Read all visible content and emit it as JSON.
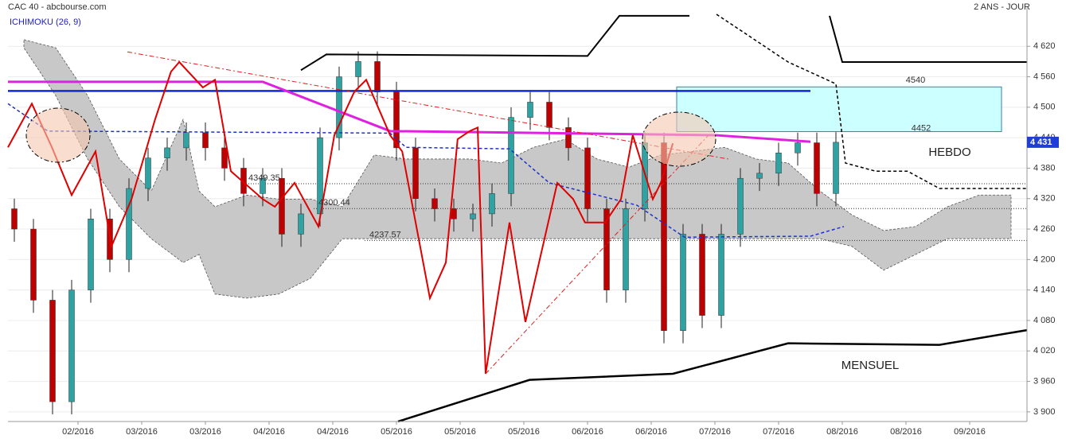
{
  "chart_data": {
    "type": "candlestick",
    "title": "CAC 40 - abcbourse.com",
    "period": "2 ANS - JOUR",
    "indicator": "ICHIMOKU (26, 9)",
    "xlim": [
      0,
      160
    ],
    "xticks": [
      {
        "value": 11,
        "label": "02/2016"
      },
      {
        "value": 21,
        "label": "03/2016"
      },
      {
        "value": 31,
        "label": "03/2016"
      },
      {
        "value": 41,
        "label": "04/2016"
      },
      {
        "value": 51,
        "label": "04/2016"
      },
      {
        "value": 61,
        "label": "05/2016"
      },
      {
        "value": 71,
        "label": "05/2016"
      },
      {
        "value": 81,
        "label": "05/2016"
      },
      {
        "value": 91,
        "label": "06/2016"
      },
      {
        "value": 101,
        "label": "06/2016"
      },
      {
        "value": 111,
        "label": "07/2016"
      },
      {
        "value": 121,
        "label": "07/2016"
      },
      {
        "value": 131,
        "label": "08/2016"
      },
      {
        "value": 141,
        "label": "08/2016"
      },
      {
        "value": 151,
        "label": "09/2016"
      }
    ],
    "ylim": [
      3881,
      4683
    ],
    "yticks": [
      {
        "value": 3900,
        "label": "3 900"
      },
      {
        "value": 3960,
        "label": "3 960"
      },
      {
        "value": 4020,
        "label": "4 020"
      },
      {
        "value": 4080,
        "label": "4 080"
      },
      {
        "value": 4140,
        "label": "4 140"
      },
      {
        "value": 4200,
        "label": "4 200"
      },
      {
        "value": 4260,
        "label": "4 260"
      },
      {
        "value": 4320,
        "label": "4 320"
      },
      {
        "value": 4380,
        "label": "4 380"
      },
      {
        "value": 4440,
        "label": "4 440"
      },
      {
        "value": 4500,
        "label": "4 500"
      },
      {
        "value": 4560,
        "label": "4 560"
      },
      {
        "value": 4620,
        "label": "4 620"
      }
    ],
    "grid": true,
    "up_color": "#2fa3a3",
    "down_color": "#c00000",
    "candles": {
      "x": [
        1,
        4,
        7,
        10,
        13,
        16,
        19,
        22,
        25,
        28,
        31,
        34,
        37,
        40,
        43,
        46,
        49,
        52,
        55,
        58,
        61,
        64,
        67,
        70,
        73,
        76,
        79,
        82,
        85,
        88,
        91,
        94,
        97,
        100,
        103,
        106,
        109,
        112,
        115,
        118,
        121,
        124,
        127,
        130
      ],
      "open": [
        4300,
        4260,
        4120,
        3920,
        4140,
        4280,
        4200,
        4340,
        4400,
        4420,
        4450,
        4420,
        4380,
        4330,
        4360,
        4250,
        4290,
        4440,
        4560,
        4590,
        4530,
        4420,
        4320,
        4300,
        4280,
        4290,
        4330,
        4480,
        4510,
        4460,
        4420,
        4300,
        4140,
        4300,
        4430,
        4060,
        4250,
        4090,
        4250,
        4360,
        4370,
        4410,
        4430,
        4330
      ],
      "high": [
        4320,
        4280,
        4140,
        4160,
        4300,
        4300,
        4360,
        4420,
        4440,
        4470,
        4470,
        4440,
        4400,
        4380,
        4380,
        4310,
        4460,
        4580,
        4610,
        4610,
        4550,
        4440,
        4340,
        4320,
        4310,
        4350,
        4500,
        4530,
        4530,
        4480,
        4440,
        4320,
        4320,
        4450,
        4450,
        4270,
        4270,
        4270,
        4380,
        4390,
        4430,
        4450,
        4450,
        4451
      ],
      "low": [
        4235,
        4095,
        3895,
        3895,
        4115,
        4175,
        4175,
        4315,
        4375,
        4395,
        4395,
        4355,
        4305,
        4305,
        4225,
        4225,
        4265,
        4415,
        4535,
        4505,
        4395,
        4295,
        4275,
        4255,
        4255,
        4265,
        4305,
        4455,
        4435,
        4395,
        4275,
        4115,
        4115,
        4275,
        4035,
        4035,
        4065,
        4065,
        4225,
        4335,
        4345,
        4385,
        4305,
        4305
      ],
      "close": [
        4260,
        4120,
        3920,
        4140,
        4280,
        4200,
        4340,
        4400,
        4420,
        4450,
        4420,
        4380,
        4330,
        4360,
        4250,
        4290,
        4440,
        4560,
        4590,
        4530,
        4420,
        4320,
        4300,
        4280,
        4290,
        4330,
        4480,
        4510,
        4460,
        4420,
        4300,
        4140,
        4300,
        4430,
        4060,
        4250,
        4090,
        4250,
        4360,
        4370,
        4410,
        4430,
        4330,
        4431
      ]
    },
    "cloud": {
      "color": "#c8c8c8",
      "x": [
        2.5,
        7.5,
        12.5,
        17.5,
        22.5,
        27.5,
        30,
        32.5,
        37.5,
        42.5,
        47.5,
        52.5,
        57.5,
        62.5,
        67.5,
        72.5,
        77.5,
        82.5,
        87.5,
        92.5,
        97.5,
        102.5,
        107.5,
        112.5,
        117.5,
        122.5,
        127.5,
        132.5,
        137.5,
        142.5,
        147.5,
        152.5,
        157.5
      ],
      "upper": [
        4633,
        4617,
        4523,
        4398,
        4335,
        4476,
        4335,
        4304,
        4327,
        4319,
        4319,
        4304,
        4406,
        4398,
        4398,
        4398,
        4390,
        4421,
        4437,
        4398,
        4382,
        4406,
        4413,
        4421,
        4398,
        4390,
        4335,
        4288,
        4257,
        4265,
        4304,
        4327,
        4327
      ],
      "lower": [
        4617,
        4523,
        4398,
        4304,
        4241,
        4194,
        4210,
        4132,
        4124,
        4132,
        4163,
        4241,
        4241,
        4241,
        4241,
        4241,
        4241,
        4241,
        4241,
        4241,
        4241,
        4241,
        4241,
        4241,
        4241,
        4241,
        4241,
        4226,
        4179,
        4210,
        4241,
        4241,
        4241
      ]
    },
    "overlays": [
      {
        "color": "#e8e8e8",
        "width": 0,
        "dash": "none",
        "x": [],
        "values": []
      },
      {
        "color": "#000000",
        "width": 2,
        "dash": "none",
        "x": [
          46,
          50,
          91,
          96,
          107
        ],
        "values": [
          4573,
          4604,
          4601,
          4680,
          4680
        ]
      },
      {
        "color": "#000000",
        "width": 2,
        "dash": "none",
        "x": [
          129,
          131,
          160
        ],
        "values": [
          4680,
          4589,
          4589
        ]
      },
      {
        "color": "#000000",
        "width": 2.5,
        "dash": "none",
        "x": [
          61.25,
          81.9,
          104.4,
          122.5,
          146.25,
          160
        ],
        "values": [
          3881,
          3963,
          3975,
          4035,
          4032,
          4061
        ]
      },
      {
        "color": "#000000",
        "width": 1.5,
        "dash": "4,3",
        "x": [
          111.25,
          122.5,
          130,
          131.5,
          136.25,
          141.25,
          146.25,
          160
        ],
        "values": [
          4683,
          4589,
          4546,
          4390,
          4374,
          4374,
          4340,
          4340
        ]
      },
      {
        "color": "#1428c8",
        "width": 2.5,
        "dash": "none",
        "x": [
          0,
          126
        ],
        "values": [
          4532,
          4532
        ]
      },
      {
        "color": "#e020e0",
        "width": 3,
        "dash": "none",
        "x": [
          0,
          40,
          60,
          111,
          126
        ],
        "values": [
          4550,
          4550,
          4453,
          4445,
          4432
        ]
      },
      {
        "color": "#1e32c8",
        "width": 1.5,
        "dash": "4,3",
        "x": [
          0,
          6.25,
          60,
          62.5,
          78.75,
          85,
          98.75,
          106.25,
          126,
          131.25
        ],
        "values": [
          4507,
          4453,
          4449,
          4421,
          4418,
          4351,
          4307,
          4244,
          4246,
          4265
        ]
      },
      {
        "color": "#e00000",
        "width": 2,
        "dash": "none",
        "x": [
          0,
          3.75,
          6.9,
          10,
          13.75,
          16.25,
          19.4,
          23.1,
          25.6,
          26.9,
          30.6,
          32.5,
          35,
          40,
          41.9,
          45,
          48.75,
          51.25,
          54.4,
          56.25,
          60,
          61.9,
          66.25,
          68.75,
          70.6,
          72.5,
          73.75,
          75,
          78.75,
          81.25,
          86.25,
          88.75,
          90.6,
          93.75,
          96.25,
          98.1,
          101.25,
          102.5,
          104.4
        ],
        "values": [
          4421,
          4507,
          4421,
          4327,
          4413,
          4226,
          4319,
          4476,
          4570,
          4589,
          4539,
          4554,
          4374,
          4319,
          4304,
          4351,
          4265,
          4445,
          4531,
          4554,
          4445,
          4413,
          4124,
          4194,
          4437,
          4453,
          4460,
          3975,
          4273,
          4077,
          4351,
          4319,
          4273,
          4273,
          4319,
          4445,
          4319,
          4351,
          4429
        ]
      },
      {
        "color": "#e02020",
        "width": 1,
        "dash": "6,3,2,3",
        "x": [
          18.75,
          113.1
        ],
        "values": [
          4609,
          4398
        ]
      },
      {
        "color": "#e02020",
        "width": 1,
        "dash": "6,3,2,3",
        "x": [
          75,
          110
        ],
        "values": [
          3975,
          4445
        ]
      }
    ],
    "zone": {
      "color": "#ccffff",
      "top": 4540,
      "bottom": 4452
    },
    "levels": [
      4349.35,
      4300.44,
      4237.57
    ],
    "last_price": {
      "value": 4431,
      "label": "4 431"
    },
    "annotations": [
      "HEBDO",
      "MENSUEL"
    ]
  }
}
